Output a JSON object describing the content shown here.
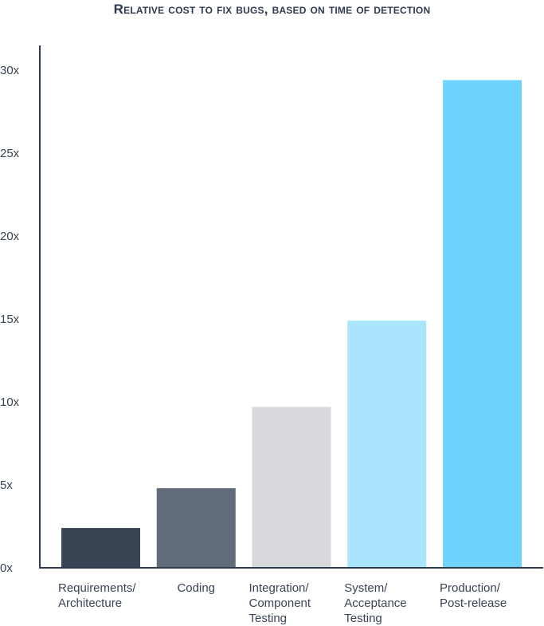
{
  "chart_data": {
    "type": "bar",
    "title": "Relative cost to fix bugs, based on time of detection",
    "categories": [
      [
        "Requirements/",
        "Architecture"
      ],
      [
        "Coding"
      ],
      [
        "Integration/",
        "Component",
        "Testing"
      ],
      [
        "System/",
        "Acceptance",
        "Testing"
      ],
      [
        "Production/",
        "Post-release"
      ]
    ],
    "values": [
      2.4,
      4.8,
      9.7,
      14.9,
      29.4
    ],
    "colors": [
      "#394455",
      "#626c79",
      "#d8d9dd",
      "#a9e6fd",
      "#6ed4fe"
    ],
    "ylim": [
      0,
      30
    ],
    "yticks": [
      0,
      5,
      10,
      15,
      20,
      25,
      30
    ],
    "ytick_labels": [
      "0x",
      "5x",
      "10x",
      "15x",
      "20x",
      "25x",
      "30x"
    ],
    "xlabel": "",
    "ylabel": "",
    "grid": false,
    "legend": "none"
  }
}
